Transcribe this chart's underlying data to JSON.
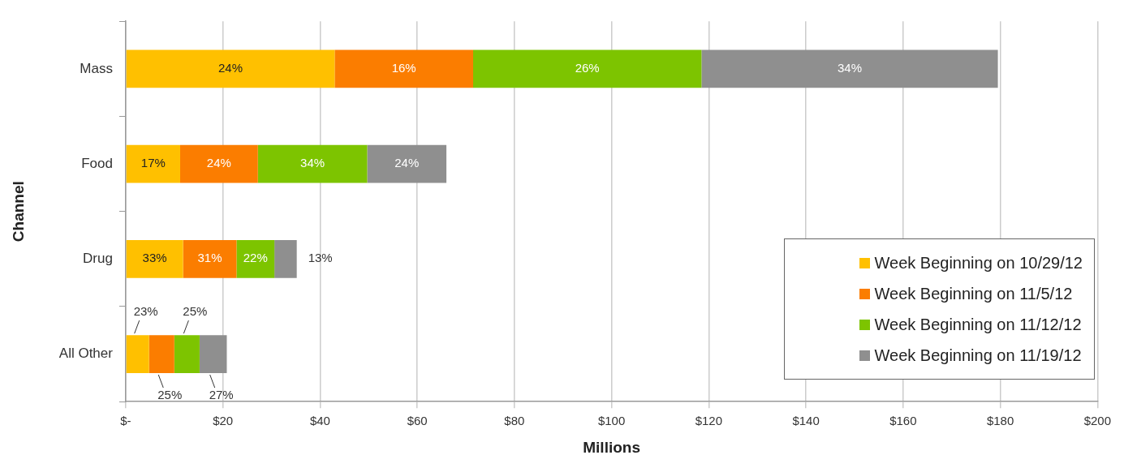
{
  "chart_data": {
    "type": "bar",
    "orientation": "horizontal",
    "stacked": true,
    "xlabel": "Millions",
    "ylabel": "Channel",
    "categories": [
      "Mass",
      "Food",
      "Drug",
      "All Other"
    ],
    "series": [
      {
        "name": "Week Beginning on 10/29/12",
        "color": "#ffc000",
        "values": [
          43,
          11.2,
          11.8,
          4.8
        ]
      },
      {
        "name": "Week Beginning on 11/5/12",
        "color": "#fb7d00",
        "values": [
          28.5,
          16,
          11,
          5.2
        ]
      },
      {
        "name": "Week Beginning on 11/12/12",
        "color": "#7dc400",
        "values": [
          47,
          22.5,
          7.8,
          5.2
        ]
      },
      {
        "name": "Week Beginning on 11/19/12",
        "color": "#8f8f8f",
        "values": [
          61,
          16.3,
          4.6,
          5.6
        ]
      }
    ],
    "annotations": [
      "24%",
      "16%",
      "26%",
      "34%",
      "17%",
      "24%",
      "34%",
      "24%",
      "33%",
      "31%",
      "22%",
      "13%",
      "23%",
      "25%",
      "25%",
      "27%"
    ],
    "xlim": [
      0,
      200
    ],
    "xticks": [
      {
        "value": 0,
        "label": "$-"
      },
      {
        "value": 20,
        "label": "$20"
      },
      {
        "value": 40,
        "label": "$40"
      },
      {
        "value": 60,
        "label": "$60"
      },
      {
        "value": 80,
        "label": "$80"
      },
      {
        "value": 100,
        "label": "$100"
      },
      {
        "value": 120,
        "label": "$120"
      },
      {
        "value": 140,
        "label": "$140"
      },
      {
        "value": 160,
        "label": "$160"
      },
      {
        "value": 180,
        "label": "$180"
      },
      {
        "value": 200,
        "label": "$200"
      }
    ],
    "grid": "x",
    "legend": "bottom right"
  }
}
